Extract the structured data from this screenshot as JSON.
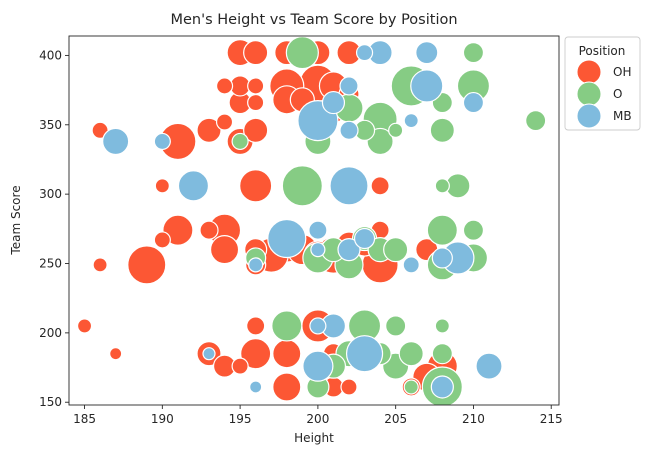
{
  "chart_data": {
    "type": "scatter",
    "title": "Men's Height vs Team Score by Position",
    "xlabel": "Height",
    "ylabel": "Team Score",
    "xlim": [
      184,
      215.5
    ],
    "ylim": [
      148,
      414
    ],
    "xticks": [
      185,
      190,
      195,
      200,
      205,
      210,
      215
    ],
    "yticks": [
      150,
      200,
      250,
      300,
      350,
      400
    ],
    "grid": false,
    "legend": {
      "title": "Position",
      "placement": "outside-top-right"
    },
    "series": [
      {
        "name": "OH",
        "color": "#fc5734",
        "points": [
          {
            "x": 195,
            "y": 402,
            "s": 13
          },
          {
            "x": 196,
            "y": 402,
            "s": 12
          },
          {
            "x": 198,
            "y": 402,
            "s": 12
          },
          {
            "x": 200,
            "y": 402,
            "s": 12
          },
          {
            "x": 202,
            "y": 402,
            "s": 12
          },
          {
            "x": 194,
            "y": 378,
            "s": 8
          },
          {
            "x": 195,
            "y": 378,
            "s": 10
          },
          {
            "x": 196,
            "y": 378,
            "s": 8
          },
          {
            "x": 198,
            "y": 378,
            "s": 17
          },
          {
            "x": 200,
            "y": 380,
            "s": 18
          },
          {
            "x": 201,
            "y": 378,
            "s": 14
          },
          {
            "x": 202,
            "y": 372,
            "s": 10
          },
          {
            "x": 195,
            "y": 366,
            "s": 11
          },
          {
            "x": 196,
            "y": 366,
            "s": 8
          },
          {
            "x": 198,
            "y": 368,
            "s": 14
          },
          {
            "x": 199,
            "y": 368,
            "s": 12
          },
          {
            "x": 201,
            "y": 360,
            "s": 12
          },
          {
            "x": 186,
            "y": 346,
            "s": 8
          },
          {
            "x": 191,
            "y": 338,
            "s": 18
          },
          {
            "x": 193,
            "y": 346,
            "s": 12
          },
          {
            "x": 194,
            "y": 352,
            "s": 8
          },
          {
            "x": 195,
            "y": 338,
            "s": 13
          },
          {
            "x": 196,
            "y": 346,
            "s": 12
          },
          {
            "x": 190,
            "y": 306,
            "s": 7
          },
          {
            "x": 196,
            "y": 306,
            "s": 16
          },
          {
            "x": 204,
            "y": 306,
            "s": 9
          },
          {
            "x": 186,
            "y": 249,
            "s": 7
          },
          {
            "x": 189,
            "y": 249,
            "s": 19
          },
          {
            "x": 190,
            "y": 267,
            "s": 8
          },
          {
            "x": 191,
            "y": 274,
            "s": 15
          },
          {
            "x": 193,
            "y": 274,
            "s": 9
          },
          {
            "x": 194,
            "y": 274,
            "s": 16
          },
          {
            "x": 194,
            "y": 260,
            "s": 14
          },
          {
            "x": 196,
            "y": 260,
            "s": 11
          },
          {
            "x": 196,
            "y": 249,
            "s": 10
          },
          {
            "x": 197,
            "y": 256,
            "s": 17
          },
          {
            "x": 198,
            "y": 264,
            "s": 18
          },
          {
            "x": 199,
            "y": 260,
            "s": 15
          },
          {
            "x": 200,
            "y": 256,
            "s": 14
          },
          {
            "x": 201,
            "y": 256,
            "s": 18
          },
          {
            "x": 202,
            "y": 264,
            "s": 12
          },
          {
            "x": 203,
            "y": 264,
            "s": 12
          },
          {
            "x": 204,
            "y": 249,
            "s": 18
          },
          {
            "x": 204,
            "y": 274,
            "s": 9
          },
          {
            "x": 207,
            "y": 260,
            "s": 11
          },
          {
            "x": 185,
            "y": 205,
            "s": 7
          },
          {
            "x": 187,
            "y": 185,
            "s": 6
          },
          {
            "x": 193,
            "y": 185,
            "s": 12
          },
          {
            "x": 194,
            "y": 176,
            "s": 11
          },
          {
            "x": 195,
            "y": 176,
            "s": 8
          },
          {
            "x": 196,
            "y": 185,
            "s": 15
          },
          {
            "x": 196,
            "y": 205,
            "s": 9
          },
          {
            "x": 198,
            "y": 185,
            "s": 14
          },
          {
            "x": 198,
            "y": 161,
            "s": 14
          },
          {
            "x": 200,
            "y": 205,
            "s": 16
          },
          {
            "x": 201,
            "y": 185,
            "s": 10
          },
          {
            "x": 201,
            "y": 161,
            "s": 10
          },
          {
            "x": 202,
            "y": 161,
            "s": 8
          },
          {
            "x": 206,
            "y": 161,
            "s": 9
          },
          {
            "x": 207,
            "y": 168,
            "s": 14
          },
          {
            "x": 208,
            "y": 176,
            "s": 15
          }
        ]
      },
      {
        "name": "O",
        "color": "#86cc84",
        "points": [
          {
            "x": 199,
            "y": 402,
            "s": 16
          },
          {
            "x": 210,
            "y": 402,
            "s": 10
          },
          {
            "x": 202,
            "y": 362,
            "s": 14
          },
          {
            "x": 203,
            "y": 346,
            "s": 10
          },
          {
            "x": 204,
            "y": 354,
            "s": 17
          },
          {
            "x": 204,
            "y": 338,
            "s": 13
          },
          {
            "x": 205,
            "y": 346,
            "s": 7
          },
          {
            "x": 206,
            "y": 378,
            "s": 20
          },
          {
            "x": 208,
            "y": 366,
            "s": 10
          },
          {
            "x": 210,
            "y": 378,
            "s": 16
          },
          {
            "x": 200,
            "y": 338,
            "s": 13
          },
          {
            "x": 208,
            "y": 346,
            "s": 12
          },
          {
            "x": 214,
            "y": 353,
            "s": 10
          },
          {
            "x": 195,
            "y": 338,
            "s": 8
          },
          {
            "x": 199,
            "y": 306,
            "s": 20
          },
          {
            "x": 208,
            "y": 306,
            "s": 7
          },
          {
            "x": 209,
            "y": 306,
            "s": 12
          },
          {
            "x": 196,
            "y": 254,
            "s": 10
          },
          {
            "x": 200,
            "y": 254,
            "s": 15
          },
          {
            "x": 201,
            "y": 260,
            "s": 12
          },
          {
            "x": 202,
            "y": 249,
            "s": 14
          },
          {
            "x": 203,
            "y": 268,
            "s": 12
          },
          {
            "x": 204,
            "y": 260,
            "s": 12
          },
          {
            "x": 205,
            "y": 260,
            "s": 12
          },
          {
            "x": 208,
            "y": 274,
            "s": 15
          },
          {
            "x": 208,
            "y": 249,
            "s": 15
          },
          {
            "x": 210,
            "y": 274,
            "s": 10
          },
          {
            "x": 210,
            "y": 254,
            "s": 14
          },
          {
            "x": 198,
            "y": 205,
            "s": 15
          },
          {
            "x": 203,
            "y": 205,
            "s": 16
          },
          {
            "x": 205,
            "y": 205,
            "s": 10
          },
          {
            "x": 208,
            "y": 205,
            "s": 7
          },
          {
            "x": 200,
            "y": 161,
            "s": 11
          },
          {
            "x": 201,
            "y": 176,
            "s": 12
          },
          {
            "x": 202,
            "y": 185,
            "s": 13
          },
          {
            "x": 204,
            "y": 185,
            "s": 11
          },
          {
            "x": 205,
            "y": 176,
            "s": 13
          },
          {
            "x": 206,
            "y": 185,
            "s": 12
          },
          {
            "x": 208,
            "y": 185,
            "s": 10
          },
          {
            "x": 206,
            "y": 161,
            "s": 7
          },
          {
            "x": 208,
            "y": 161,
            "s": 20
          }
        ]
      },
      {
        "name": "MB",
        "color": "#7fbbde",
        "points": [
          {
            "x": 203,
            "y": 402,
            "s": 8
          },
          {
            "x": 204,
            "y": 402,
            "s": 12
          },
          {
            "x": 207,
            "y": 402,
            "s": 11
          },
          {
            "x": 200,
            "y": 353,
            "s": 20
          },
          {
            "x": 201,
            "y": 366,
            "s": 11
          },
          {
            "x": 202,
            "y": 378,
            "s": 9
          },
          {
            "x": 202,
            "y": 346,
            "s": 9
          },
          {
            "x": 206,
            "y": 353,
            "s": 7
          },
          {
            "x": 207,
            "y": 378,
            "s": 16
          },
          {
            "x": 210,
            "y": 366,
            "s": 10
          },
          {
            "x": 187,
            "y": 338,
            "s": 13
          },
          {
            "x": 190,
            "y": 338,
            "s": 8
          },
          {
            "x": 192,
            "y": 306,
            "s": 15
          },
          {
            "x": 202,
            "y": 306,
            "s": 19
          },
          {
            "x": 196,
            "y": 249,
            "s": 7
          },
          {
            "x": 198,
            "y": 268,
            "s": 19
          },
          {
            "x": 200,
            "y": 274,
            "s": 9
          },
          {
            "x": 200,
            "y": 260,
            "s": 7
          },
          {
            "x": 202,
            "y": 260,
            "s": 11
          },
          {
            "x": 203,
            "y": 268,
            "s": 10
          },
          {
            "x": 206,
            "y": 249,
            "s": 8
          },
          {
            "x": 208,
            "y": 254,
            "s": 10
          },
          {
            "x": 209,
            "y": 254,
            "s": 16
          },
          {
            "x": 193,
            "y": 185,
            "s": 6
          },
          {
            "x": 196,
            "y": 161,
            "s": 6
          },
          {
            "x": 200,
            "y": 205,
            "s": 8
          },
          {
            "x": 201,
            "y": 205,
            "s": 12
          },
          {
            "x": 200,
            "y": 176,
            "s": 15
          },
          {
            "x": 203,
            "y": 185,
            "s": 18
          },
          {
            "x": 208,
            "y": 161,
            "s": 11
          },
          {
            "x": 211,
            "y": 176,
            "s": 13
          }
        ]
      }
    ]
  }
}
